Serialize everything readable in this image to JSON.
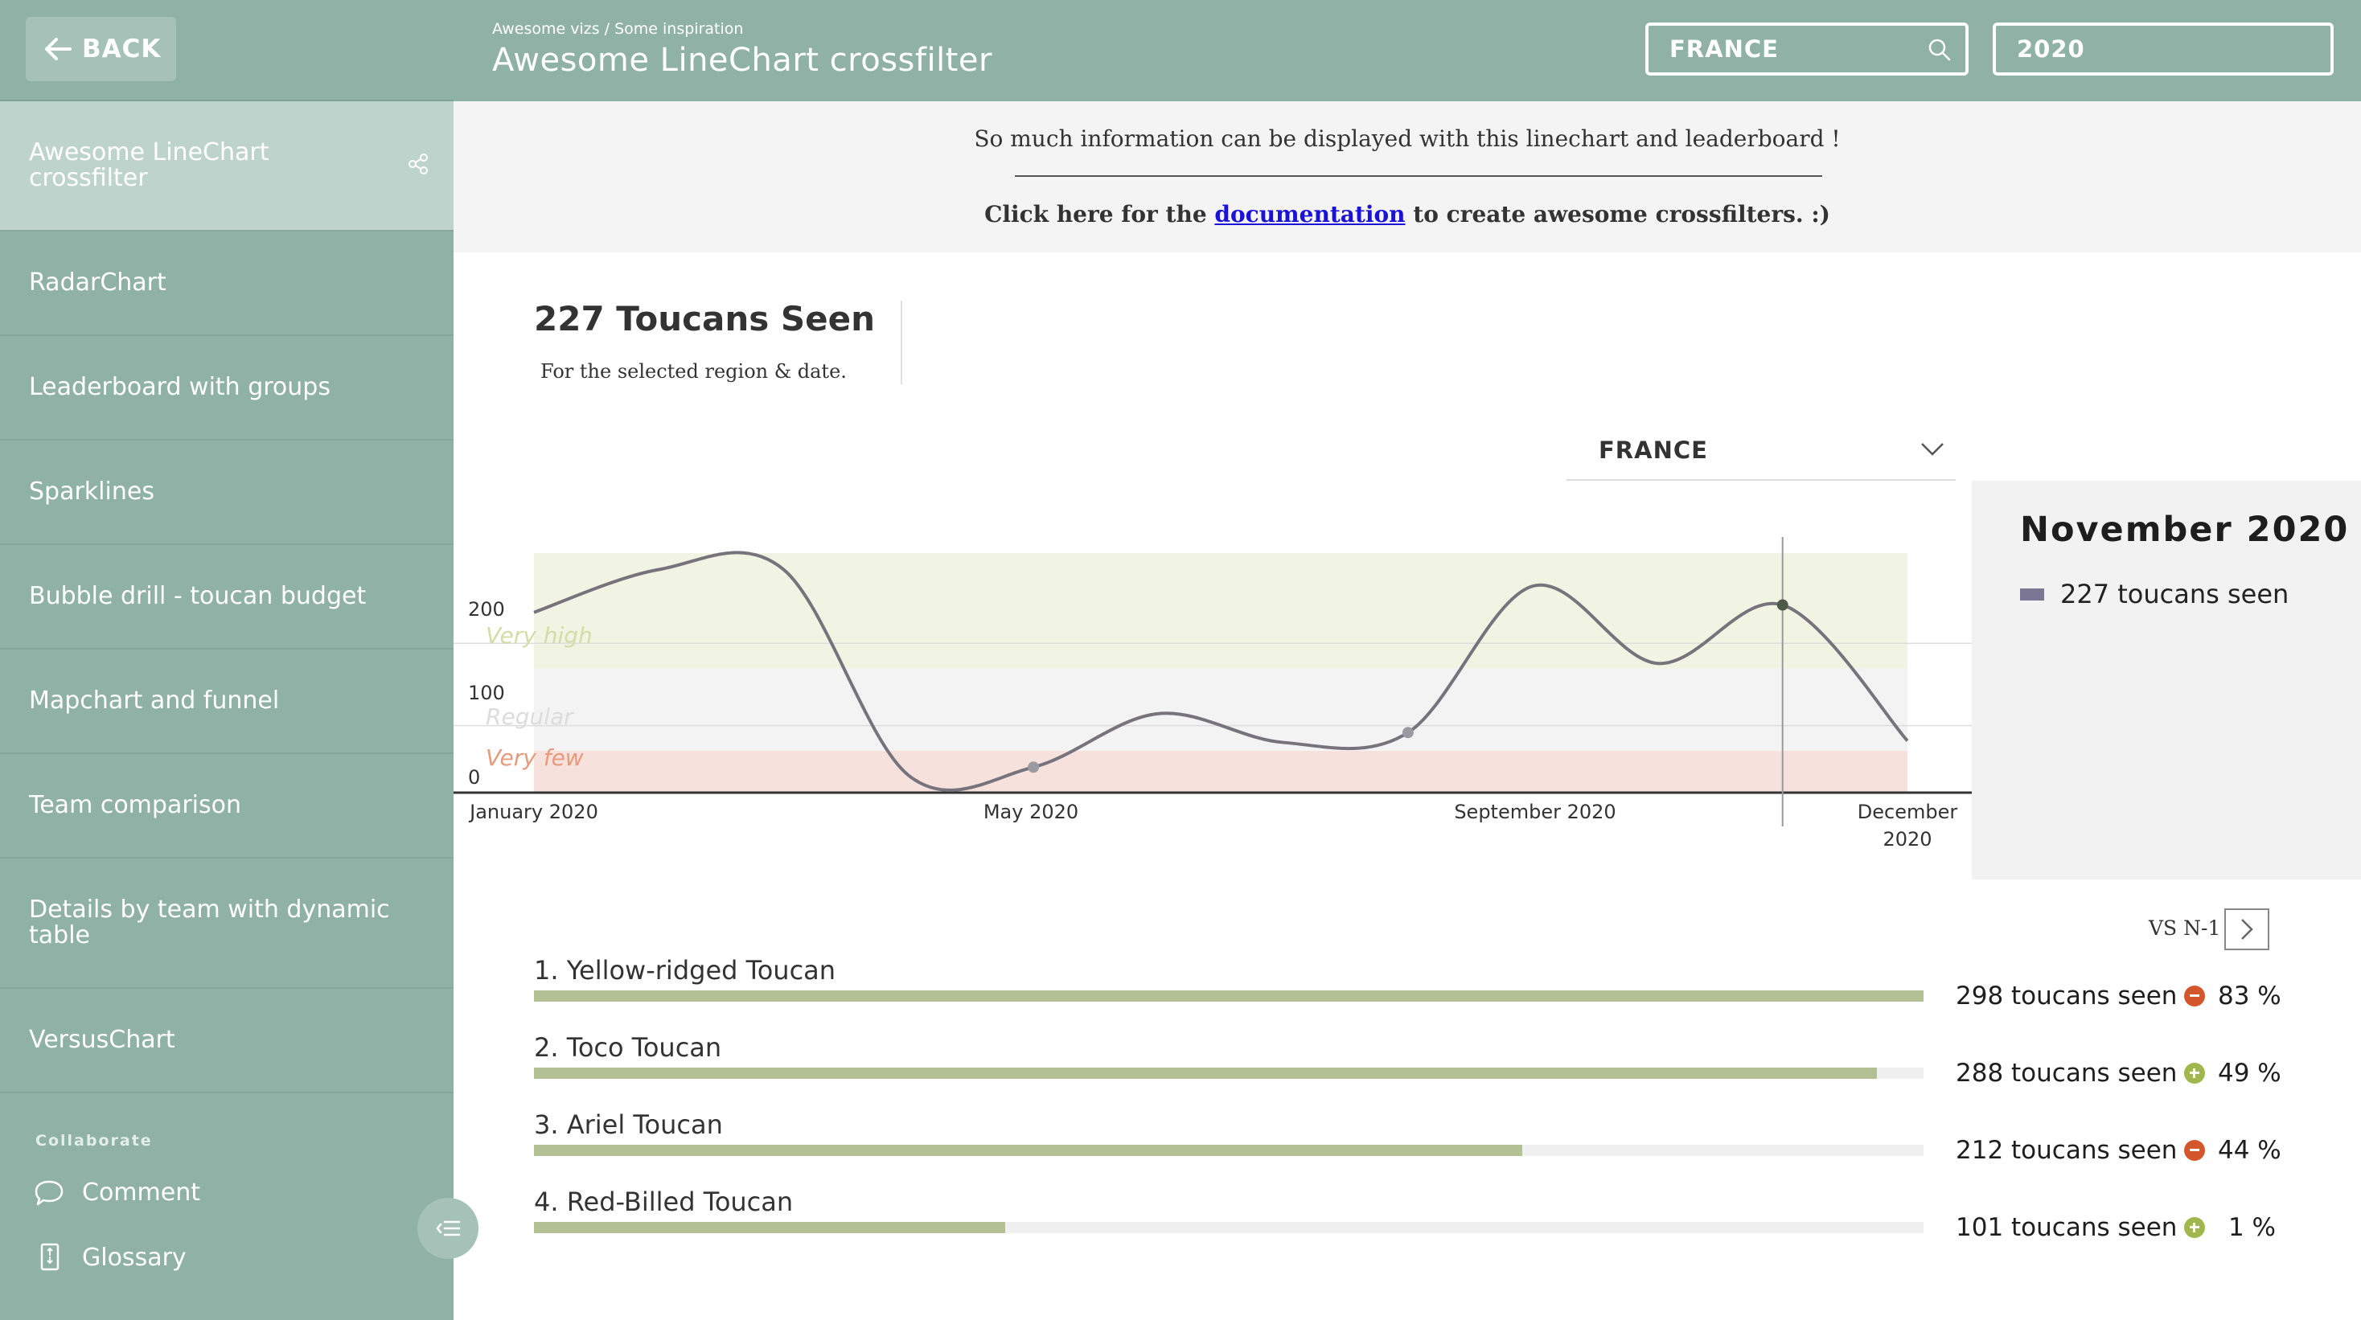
{
  "sidebar": {
    "back_label": "BACK",
    "items": [
      {
        "label": "Awesome LineChart crossfilter",
        "active": true
      },
      {
        "label": "RadarChart"
      },
      {
        "label": "Leaderboard with groups"
      },
      {
        "label": "Sparklines"
      },
      {
        "label": "Bubble drill - toucan budget"
      },
      {
        "label": "Mapchart and funnel"
      },
      {
        "label": "Team comparison"
      },
      {
        "label": "Details by team with dynamic table"
      },
      {
        "label": "VersusChart"
      }
    ],
    "collaborate_title": "Collaborate",
    "comment_label": "Comment",
    "glossary_label": "Glossary"
  },
  "header": {
    "breadcrumb": "Awesome vizs / Some inspiration",
    "title": "Awesome LineChart crossfilter",
    "region_filter": "FRANCE",
    "year_filter": "2020"
  },
  "info": {
    "line1": "So much information can be displayed with this linechart and leaderboard !",
    "line2_prefix": "Click here for the ",
    "link_text": "documentation",
    "line2_suffix": " to create awesome crossfilters. :)"
  },
  "kpi": {
    "value_text": "227 Toucans Seen",
    "subtitle": "For the selected region & date."
  },
  "region_select": {
    "value": "FRANCE"
  },
  "tooltip": {
    "title": "November 2020",
    "series_text": "227 toucans seen"
  },
  "chart_data": {
    "type": "line",
    "x": [
      "2020-01",
      "2020-02",
      "2020-03",
      "2020-04",
      "2020-05",
      "2020-06",
      "2020-07",
      "2020-08",
      "2020-09",
      "2020-10",
      "2020-11",
      "2020-12"
    ],
    "x_ticks": [
      "January 2020",
      "May 2020",
      "September 2020",
      "December 2020"
    ],
    "y_ticks": [
      "0",
      "100",
      "200"
    ],
    "ylim": [
      0,
      290
    ],
    "series": [
      {
        "values": [
          218,
          270,
          270,
          20,
          30,
          95,
          60,
          72,
          250,
          156,
          227,
          62
        ],
        "color": "#77737c"
      }
    ],
    "bands": [
      {
        "label": "Very few",
        "from": 0,
        "to": 50,
        "color": "#f7e1dc",
        "label_color": "#e89a7c"
      },
      {
        "label": "Regular",
        "from": 50,
        "to": 150,
        "color": "#f3f3f3",
        "label_color": "#dcdcdc"
      },
      {
        "label": "Very high",
        "from": 150,
        "to": 300,
        "color": "#f1f4e2",
        "label_color": "#d4dca8"
      }
    ],
    "selected_x": "2020-11",
    "highlighted_points": [
      "2020-05",
      "2020-08",
      "2020-11"
    ],
    "grid": true,
    "legend": "right"
  },
  "leaderboard": {
    "compare_label": "VS N-1",
    "max": 298,
    "rows": [
      {
        "rank_name": "1. Yellow-ridged Toucan",
        "value": 298,
        "value_text": "298 toucans seen",
        "trend": "down",
        "pct": "83 %"
      },
      {
        "rank_name": "2. Toco Toucan",
        "value": 288,
        "value_text": "288 toucans seen",
        "trend": "up",
        "pct": "49 %"
      },
      {
        "rank_name": "3. Ariel Toucan",
        "value": 212,
        "value_text": "212 toucans seen",
        "trend": "down",
        "pct": "44 %"
      },
      {
        "rank_name": "4. Red-Billed Toucan",
        "value": 101,
        "value_text": "101 toucans seen",
        "trend": "up",
        "pct": "1 %"
      }
    ]
  }
}
